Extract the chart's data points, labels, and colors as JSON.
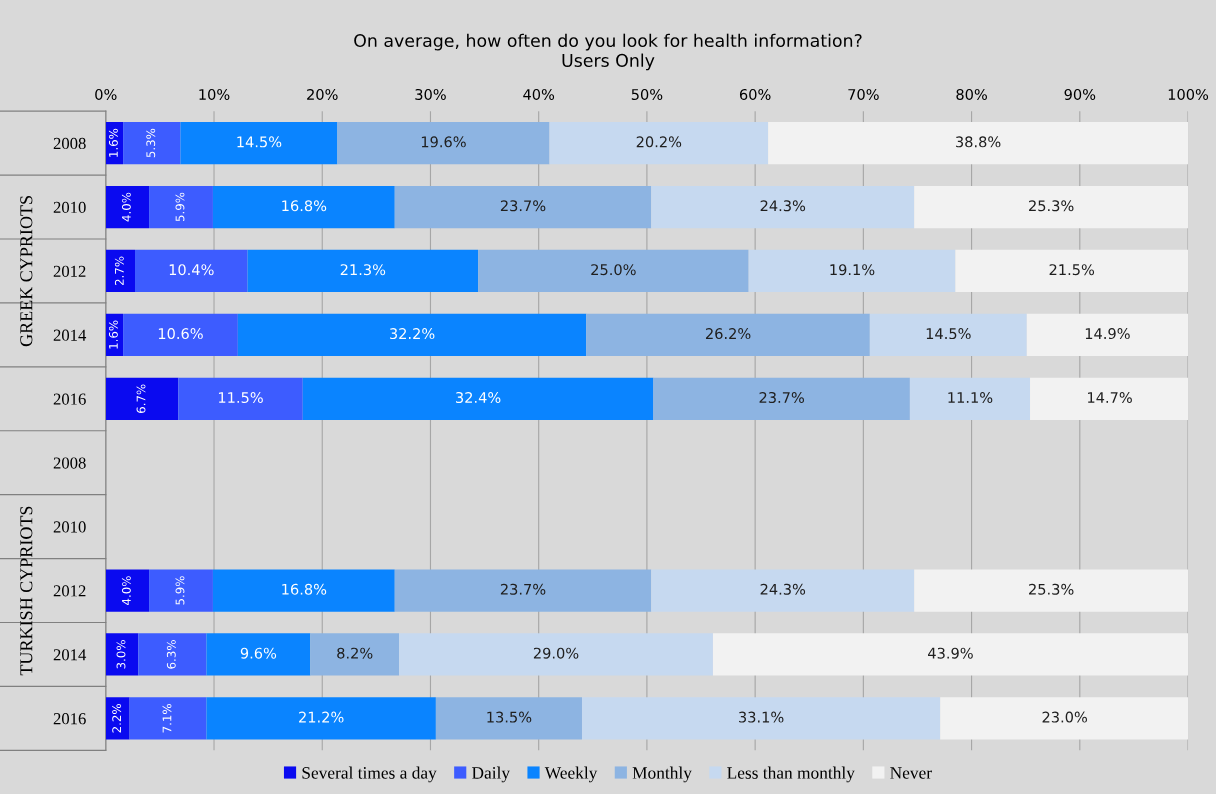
{
  "chart_data": {
    "type": "bar",
    "orientation": "horizontal",
    "stacked": true,
    "title": "On average, how often do you look for health information?",
    "subtitle": "Users Only",
    "categories": [
      "2008",
      "2010",
      "2012",
      "2014",
      "2016",
      "2008",
      "2010",
      "2012",
      "2014",
      "2016"
    ],
    "annotations": [
      "GREEK CYPRIOTS",
      "TURKISH CYPRIOTS"
    ],
    "xlim": [
      0,
      100
    ],
    "xticks": [
      {
        "value": 0,
        "label": "0%"
      },
      {
        "value": 10,
        "label": "10%"
      },
      {
        "value": 20,
        "label": "20%"
      },
      {
        "value": 30,
        "label": "30%"
      },
      {
        "value": 40,
        "label": "40%"
      },
      {
        "value": 50,
        "label": "50%"
      },
      {
        "value": 60,
        "label": "60%"
      },
      {
        "value": 70,
        "label": "70%"
      },
      {
        "value": 80,
        "label": "80%"
      },
      {
        "value": 90,
        "label": "90%"
      },
      {
        "value": 100,
        "label": "100%"
      }
    ],
    "grid": "x",
    "legend": "bottom",
    "series": [
      {
        "name": "Several times a day",
        "color": "#0a0af0",
        "values": [
          1.6,
          4.0,
          2.7,
          1.6,
          6.7,
          null,
          null,
          4.0,
          3.0,
          2.2
        ],
        "value_labels": [
          "1.6%",
          "4.0%",
          "2.7%",
          "1.6%",
          "6.7%",
          null,
          null,
          "4.0%",
          "3.0%",
          "2.2%"
        ]
      },
      {
        "name": "Daily",
        "color": "#3d5cff",
        "values": [
          5.3,
          5.9,
          10.4,
          10.6,
          11.5,
          null,
          null,
          5.9,
          6.3,
          7.1
        ],
        "value_labels": [
          "5.3%",
          "5.9%",
          "10.4%",
          "10.6%",
          "11.5%",
          null,
          null,
          "5.9%",
          "6.3%",
          "7.1%"
        ]
      },
      {
        "name": "Weekly",
        "color": "#0a84ff",
        "values": [
          14.5,
          16.8,
          21.3,
          32.2,
          32.4,
          null,
          null,
          16.8,
          9.6,
          21.2
        ],
        "value_labels": [
          "14.5%",
          "16.8%",
          "21.3%",
          "32.2%",
          "32.4%",
          null,
          null,
          "16.8%",
          "9.6%",
          "21.2%"
        ]
      },
      {
        "name": "Monthly",
        "color": "#8db4e2",
        "values": [
          19.6,
          23.7,
          25.0,
          26.2,
          23.7,
          null,
          null,
          23.7,
          8.2,
          13.5
        ],
        "value_labels": [
          "19.6%",
          "23.7%",
          "25.0%",
          "26.2%",
          "23.7%",
          null,
          null,
          "23.7%",
          "8.2%",
          "13.5%"
        ]
      },
      {
        "name": "Less than monthly",
        "color": "#c6d9f0",
        "values": [
          20.2,
          24.3,
          19.1,
          14.5,
          11.1,
          null,
          null,
          24.3,
          29.0,
          33.1
        ],
        "value_labels": [
          "20.2%",
          "24.3%",
          "19.1%",
          "14.5%",
          "11.1%",
          null,
          null,
          "24.3%",
          "29.0%",
          "33.1%"
        ]
      },
      {
        "name": "Never",
        "color": "#f2f2f2",
        "values": [
          38.8,
          25.3,
          21.5,
          14.9,
          14.7,
          null,
          null,
          25.3,
          43.9,
          23.0
        ],
        "value_labels": [
          "38.8%",
          "25.3%",
          "21.5%",
          "14.9%",
          "14.7%",
          null,
          null,
          "25.3%",
          "43.9%",
          "23.0%"
        ]
      }
    ]
  }
}
